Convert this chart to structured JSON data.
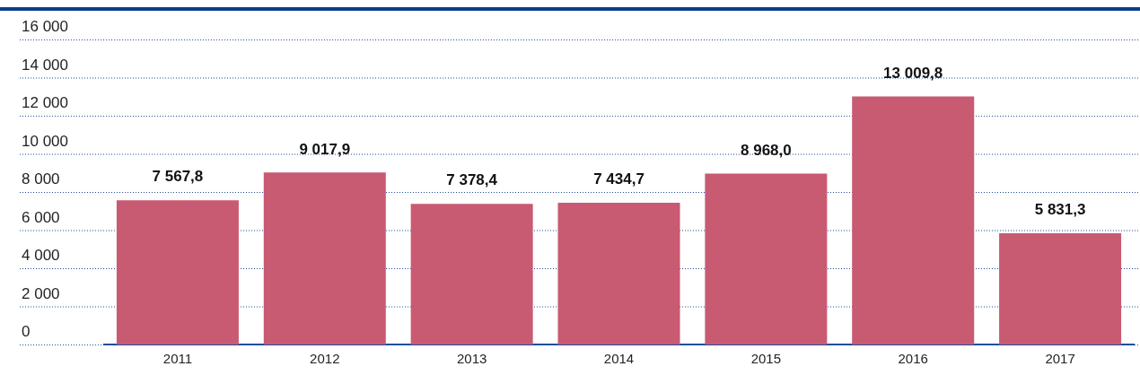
{
  "chart_data": {
    "type": "bar",
    "categories": [
      "2011",
      "2012",
      "2013",
      "2014",
      "2015",
      "2016",
      "2017"
    ],
    "values": [
      7567.8,
      9017.9,
      7378.4,
      7434.7,
      8968.0,
      13009.8,
      5831.3
    ],
    "value_labels": [
      "7 567,8",
      "9 017,9",
      "7 378,4",
      "7 434,7",
      "8 968,0",
      "13 009,8",
      "5 831,3"
    ],
    "color": "#c85a72",
    "ylim": [
      0,
      16000
    ],
    "yticks": [
      {
        "value": 0,
        "label": "0"
      },
      {
        "value": 2000,
        "label": "2 000"
      },
      {
        "value": 4000,
        "label": "4 000"
      },
      {
        "value": 6000,
        "label": "6 000"
      },
      {
        "value": 8000,
        "label": "8 000"
      },
      {
        "value": 10000,
        "label": "10 000"
      },
      {
        "value": 12000,
        "label": "12 000"
      },
      {
        "value": 14000,
        "label": "14 000"
      },
      {
        "value": 16000,
        "label": "16 000"
      }
    ],
    "grid": "y",
    "legend": false
  }
}
